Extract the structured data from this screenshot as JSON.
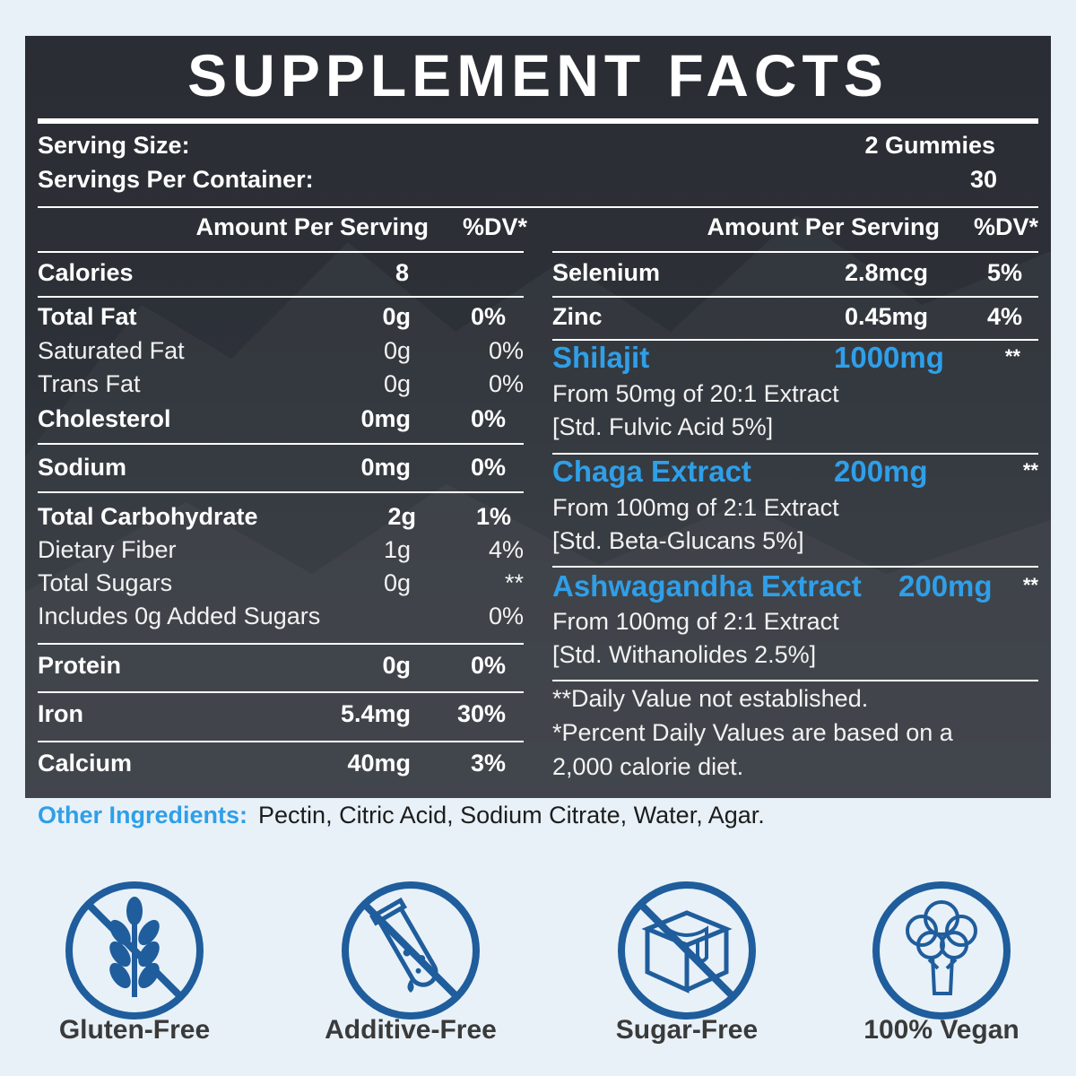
{
  "title": "SUPPLEMENT FACTS",
  "serving": {
    "size_label": "Serving Size:",
    "size_value": "2 Gummies",
    "per_container_label": "Servings Per Container:",
    "per_container_value": "30"
  },
  "left": {
    "header_amount": "Amount Per Serving",
    "header_dv": "%DV*",
    "rows": [
      {
        "name": "Calories",
        "amount": "8",
        "dv": ""
      },
      {
        "name": "Total Fat",
        "amount": "0g",
        "dv": "0%"
      },
      {
        "name": "Saturated Fat",
        "amount": "0g",
        "dv": "0%"
      },
      {
        "name": "Trans Fat",
        "amount": "0g",
        "dv": "0%"
      },
      {
        "name": "Cholesterol",
        "amount": "0mg",
        "dv": "0%"
      },
      {
        "name": "Sodium",
        "amount": "0mg",
        "dv": "0%"
      },
      {
        "name": "Total Carbohydrate",
        "amount": "2g",
        "dv": "1%"
      },
      {
        "name": "Dietary Fiber",
        "amount": "1g",
        "dv": "4%"
      },
      {
        "name": "Total Sugars",
        "amount": "0g",
        "dv": "**"
      },
      {
        "name": "Includes 0g Added Sugars",
        "amount": "",
        "dv": "0%"
      },
      {
        "name": "Protein",
        "amount": "0g",
        "dv": "0%"
      },
      {
        "name": "Iron",
        "amount": "5.4mg",
        "dv": "30%"
      },
      {
        "name": "Calcium",
        "amount": "40mg",
        "dv": "3%"
      }
    ]
  },
  "right": {
    "header_amount": "Amount Per Serving",
    "header_dv": "%DV*",
    "rows": [
      {
        "name": "Selenium",
        "amount": "2.8mcg",
        "dv": "5%"
      },
      {
        "name": "Zinc",
        "amount": "0.45mg",
        "dv": "4%"
      }
    ],
    "herbs": [
      {
        "name": "Shilajit",
        "amount": "1000mg",
        "dv": "**",
        "line1": "From 50mg of 20:1 Extract",
        "line2": "[Std. Fulvic Acid 5%]"
      },
      {
        "name": "Chaga Extract",
        "amount": "200mg",
        "dv": "**",
        "line1": "From 100mg of 2:1 Extract",
        "line2": "[Std. Beta-Glucans 5%]"
      },
      {
        "name": "Ashwagandha Extract",
        "amount": "200mg",
        "dv": "**",
        "line1": "From 100mg of 2:1 Extract",
        "line2": "[Std. Withanolides 2.5%]"
      }
    ],
    "footnote1": "**Daily Value not established.",
    "footnote2": "*Percent Daily Values are based on a",
    "footnote3": "2,000 calorie diet."
  },
  "other_ingredients": {
    "label": "Other Ingredients:",
    "text": "Pectin, Citric Acid, Sodium Citrate, Water, Agar."
  },
  "badges": [
    {
      "label": "Gluten-Free",
      "icon": "wheat-icon"
    },
    {
      "label": "Additive-Free",
      "icon": "test-tube-icon"
    },
    {
      "label": "Sugar-Free",
      "icon": "sugar-cube-icon"
    },
    {
      "label": "100% Vegan",
      "icon": "broccoli-icon"
    }
  ],
  "colors": {
    "accent": "#2f9fe8",
    "badge": "#1f5d9c",
    "panel": "#2d3138"
  }
}
